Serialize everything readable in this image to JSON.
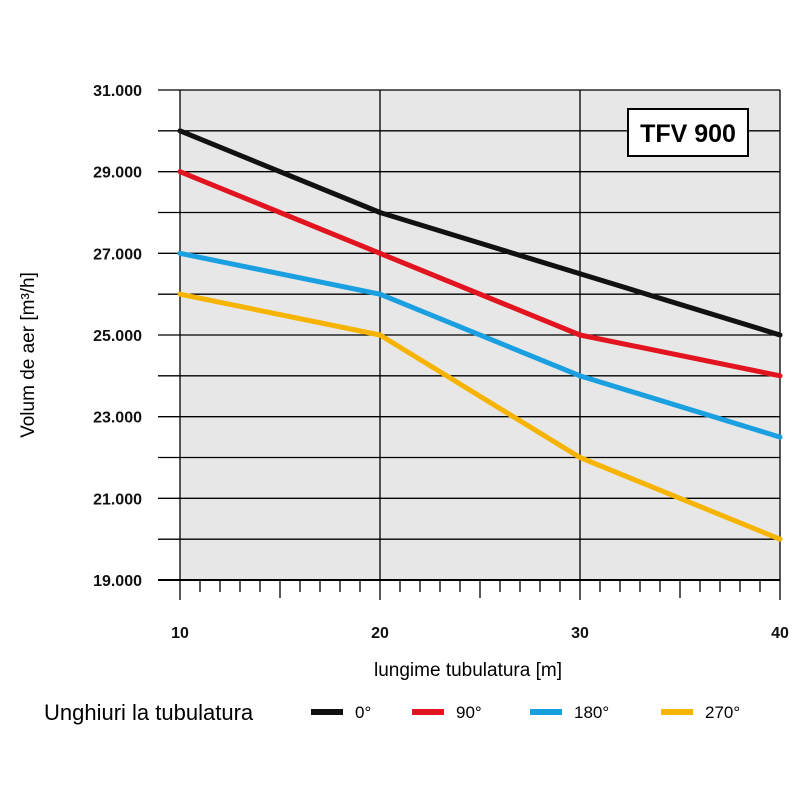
{
  "chart_data": {
    "type": "line",
    "title": "TFV 900",
    "xlabel": "lungime tubulatura [m]",
    "ylabel": "Volum de aer [m³/h]",
    "xlim": [
      10,
      40
    ],
    "ylim": [
      19000,
      31000
    ],
    "x": [
      10,
      20,
      30,
      40
    ],
    "x_tick_labels": [
      "10",
      "20",
      "30",
      "40"
    ],
    "y_ticks": [
      19000,
      21000,
      23000,
      25000,
      27000,
      29000,
      31000
    ],
    "y_tick_labels": [
      "19.000",
      "21.000",
      "23.000",
      "25.000",
      "27.000",
      "29.000",
      "31.000"
    ],
    "grid": true,
    "legend_title": "Unghiuri la tubulatura",
    "legend_position": "bottom",
    "series": [
      {
        "name": "0°",
        "color": "#111111",
        "values": [
          30000,
          28000,
          26500,
          25000
        ]
      },
      {
        "name": "90°",
        "color": "#e2141f",
        "values": [
          29000,
          27000,
          25000,
          24000
        ]
      },
      {
        "name": "180°",
        "color": "#1a9fe0",
        "values": [
          27000,
          26000,
          24000,
          22500
        ]
      },
      {
        "name": "270°",
        "color": "#f6b400",
        "values": [
          26000,
          25000,
          22000,
          20000
        ]
      }
    ]
  }
}
